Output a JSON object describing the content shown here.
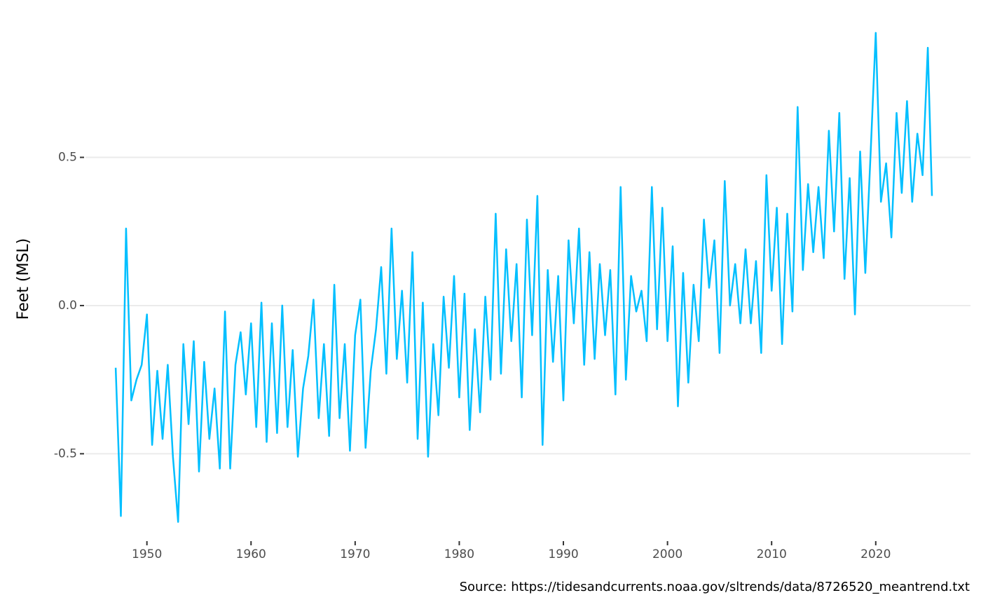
{
  "chart_data": {
    "type": "line",
    "y_label": "Feet (MSL)",
    "caption": "Source: https://tidesandcurrents.noaa.gov/sltrends/data/8726520_meantrend.txt",
    "x": [
      1947.0,
      1947.5,
      1948.0,
      1948.5,
      1949.0,
      1949.5,
      1950.0,
      1950.5,
      1951.0,
      1951.5,
      1952.0,
      1952.5,
      1953.0,
      1953.5,
      1954.0,
      1954.5,
      1955.0,
      1955.5,
      1956.0,
      1956.5,
      1957.0,
      1957.5,
      1958.0,
      1958.5,
      1959.0,
      1959.5,
      1960.0,
      1960.5,
      1961.0,
      1961.5,
      1962.0,
      1962.5,
      1963.0,
      1963.5,
      1964.0,
      1964.5,
      1965.0,
      1965.5,
      1966.0,
      1966.5,
      1967.0,
      1967.5,
      1968.0,
      1968.5,
      1969.0,
      1969.5,
      1970.0,
      1970.5,
      1971.0,
      1971.5,
      1972.0,
      1972.5,
      1973.0,
      1973.5,
      1974.0,
      1974.5,
      1975.0,
      1975.5,
      1976.0,
      1976.5,
      1977.0,
      1977.5,
      1978.0,
      1978.5,
      1979.0,
      1979.5,
      1980.0,
      1980.5,
      1981.0,
      1981.5,
      1982.0,
      1982.5,
      1983.0,
      1983.5,
      1984.0,
      1984.5,
      1985.0,
      1985.5,
      1986.0,
      1986.5,
      1987.0,
      1987.5,
      1988.0,
      1988.5,
      1989.0,
      1989.5,
      1990.0,
      1990.5,
      1991.0,
      1991.5,
      1992.0,
      1992.5,
      1993.0,
      1993.5,
      1994.0,
      1994.5,
      1995.0,
      1995.5,
      1996.0,
      1996.5,
      1997.0,
      1997.5,
      1998.0,
      1998.5,
      1999.0,
      1999.5,
      2000.0,
      2000.5,
      2001.0,
      2001.5,
      2002.0,
      2002.5,
      2003.0,
      2003.5,
      2004.0,
      2004.5,
      2005.0,
      2005.5,
      2006.0,
      2006.5,
      2007.0,
      2007.5,
      2008.0,
      2008.5,
      2009.0,
      2009.5,
      2010.0,
      2010.5,
      2011.0,
      2011.5,
      2012.0,
      2012.5,
      2013.0,
      2013.5,
      2014.0,
      2014.5,
      2015.0,
      2015.5,
      2016.0,
      2016.5,
      2017.0,
      2017.5,
      2018.0,
      2018.5,
      2019.0,
      2019.5,
      2020.0,
      2020.5,
      2021.0,
      2021.5,
      2022.0,
      2022.5,
      2023.0,
      2023.5,
      2024.0,
      2024.5,
      2025.0,
      2025.4
    ],
    "series": [
      {
        "color": "#00bfff",
        "values": [
          -0.21,
          -0.71,
          0.26,
          -0.32,
          -0.25,
          -0.2,
          -0.03,
          -0.47,
          -0.22,
          -0.45,
          -0.2,
          -0.51,
          -0.73,
          -0.13,
          -0.4,
          -0.12,
          -0.56,
          -0.19,
          -0.45,
          -0.28,
          -0.55,
          -0.02,
          -0.55,
          -0.2,
          -0.09,
          -0.3,
          -0.06,
          -0.41,
          0.01,
          -0.46,
          -0.06,
          -0.43,
          0.0,
          -0.41,
          -0.15,
          -0.51,
          -0.28,
          -0.17,
          0.02,
          -0.38,
          -0.13,
          -0.44,
          0.07,
          -0.38,
          -0.13,
          -0.49,
          -0.1,
          0.02,
          -0.48,
          -0.22,
          -0.08,
          0.13,
          -0.23,
          0.26,
          -0.18,
          0.05,
          -0.26,
          0.18,
          -0.45,
          0.01,
          -0.51,
          -0.13,
          -0.37,
          0.03,
          -0.21,
          0.1,
          -0.31,
          0.04,
          -0.42,
          -0.08,
          -0.36,
          0.03,
          -0.25,
          0.31,
          -0.23,
          0.19,
          -0.12,
          0.14,
          -0.31,
          0.29,
          -0.1,
          0.37,
          -0.47,
          0.12,
          -0.19,
          0.1,
          -0.32,
          0.22,
          -0.06,
          0.26,
          -0.2,
          0.18,
          -0.18,
          0.14,
          -0.1,
          0.12,
          -0.3,
          0.4,
          -0.25,
          0.1,
          -0.02,
          0.05,
          -0.12,
          0.4,
          -0.08,
          0.33,
          -0.12,
          0.2,
          -0.34,
          0.11,
          -0.26,
          0.07,
          -0.12,
          0.29,
          0.06,
          0.22,
          -0.16,
          0.42,
          0.0,
          0.14,
          -0.06,
          0.19,
          -0.06,
          0.15,
          -0.16,
          0.44,
          0.05,
          0.33,
          -0.13,
          0.31,
          -0.02,
          0.67,
          0.12,
          0.41,
          0.18,
          0.4,
          0.16,
          0.59,
          0.25,
          0.65,
          0.09,
          0.43,
          -0.03,
          0.52,
          0.11,
          0.51,
          0.92,
          0.35,
          0.48,
          0.23,
          0.65,
          0.38,
          0.69,
          0.35,
          0.58,
          0.44,
          0.87,
          0.37
        ]
      }
    ],
    "xlim": [
      1944.1,
      2029.1
    ],
    "xticks": [
      1950,
      1960,
      1970,
      1980,
      1990,
      2000,
      2010,
      2020
    ],
    "ylim": [
      -0.79,
      0.96
    ],
    "yticks": [
      -0.5,
      {
        "value": 0,
        "label": "0.0"
      },
      0.5
    ],
    "grid": true
  }
}
